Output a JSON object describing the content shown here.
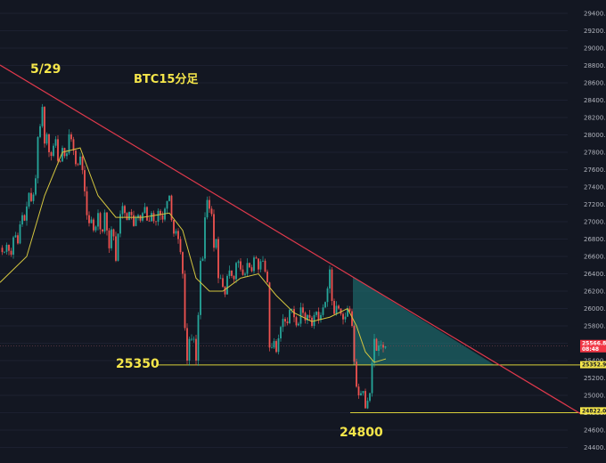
{
  "chart_data": {
    "type": "candlestick",
    "title": "BTC15分足",
    "date_label": "5/29",
    "ylim": [
      24400,
      29600
    ],
    "y_ticks": [
      24400,
      24600,
      24800,
      25000,
      25200,
      25400,
      25600,
      25800,
      26000,
      26200,
      26400,
      26600,
      26800,
      27000,
      27200,
      27400,
      27600,
      27800,
      28000,
      28200,
      28400,
      28600,
      28800,
      29000,
      29200,
      29400
    ],
    "y_tick_labels": [
      "24400.00",
      "24600.00",
      "24800.00",
      "25000.00",
      "25200.00",
      "25400.00",
      "25600.00",
      "25800.00",
      "26000.00",
      "26200.00",
      "26400.00",
      "26600.00",
      "26800.00",
      "27000.00",
      "27200.00",
      "27400.00",
      "27600.00",
      "27800.00",
      "28000.00",
      "28200.00",
      "28400.00",
      "28600.00",
      "28800.00",
      "29000.00",
      "29200.00",
      "29400.00"
    ],
    "price_tags": [
      {
        "label": "25566.87",
        "sub": "08:48",
        "value": 25566.87,
        "color": "#f23645"
      },
      {
        "label": "25352.96",
        "value": 25352.96,
        "color": "#f5e64a"
      },
      {
        "label": "24822.02",
        "value": 24822.02,
        "color": "#f5e64a"
      }
    ],
    "support_levels": [
      {
        "label": "25350",
        "value": 25350
      },
      {
        "label": "24800",
        "value": 24800
      }
    ],
    "path": [
      [
        0,
        26700
      ],
      [
        4,
        26620
      ],
      [
        8,
        26750
      ],
      [
        12,
        26580
      ],
      [
        16,
        26900
      ],
      [
        20,
        26750
      ],
      [
        24,
        27100
      ],
      [
        28,
        27000
      ],
      [
        32,
        27350
      ],
      [
        36,
        27200
      ],
      [
        40,
        27500
      ],
      [
        42,
        27900
      ],
      [
        44,
        28200
      ],
      [
        46,
        28000
      ],
      [
        48,
        28430
      ],
      [
        50,
        27900
      ],
      [
        52,
        28050
      ],
      [
        55,
        27800
      ],
      [
        58,
        27750
      ],
      [
        62,
        28000
      ],
      [
        66,
        27600
      ],
      [
        70,
        27850
      ],
      [
        74,
        27700
      ],
      [
        78,
        28050
      ],
      [
        82,
        27850
      ],
      [
        86,
        27600
      ],
      [
        90,
        27750
      ],
      [
        94,
        27500
      ],
      [
        96,
        27200
      ],
      [
        99,
        26950
      ],
      [
        102,
        27050
      ],
      [
        106,
        26850
      ],
      [
        110,
        27100
      ],
      [
        114,
        26800
      ],
      [
        118,
        27150
      ],
      [
        122,
        26650
      ],
      [
        126,
        27000
      ],
      [
        130,
        26550
      ],
      [
        134,
        27050
      ],
      [
        138,
        27200
      ],
      [
        142,
        27000
      ],
      [
        146,
        27150
      ],
      [
        150,
        26950
      ],
      [
        154,
        27100
      ],
      [
        158,
        27000
      ],
      [
        162,
        27200
      ],
      [
        166,
        26950
      ],
      [
        170,
        27100
      ],
      [
        174,
        26950
      ],
      [
        178,
        27150
      ],
      [
        182,
        27000
      ],
      [
        186,
        27200
      ],
      [
        190,
        27300
      ],
      [
        194,
        26850
      ],
      [
        198,
        26900
      ],
      [
        202,
        26700
      ],
      [
        206,
        26300
      ],
      [
        208,
        25600
      ],
      [
        210,
        25400
      ],
      [
        212,
        25700
      ],
      [
        214,
        25500
      ],
      [
        216,
        25800
      ],
      [
        218,
        25600
      ],
      [
        220,
        25400
      ],
      [
        222,
        25800
      ],
      [
        224,
        26300
      ],
      [
        226,
        26800
      ],
      [
        228,
        26500
      ],
      [
        230,
        27050
      ],
      [
        232,
        27200
      ],
      [
        234,
        27400
      ],
      [
        236,
        26900
      ],
      [
        238,
        27150
      ],
      [
        240,
        26700
      ],
      [
        242,
        26900
      ],
      [
        244,
        26500
      ],
      [
        246,
        26200
      ],
      [
        248,
        26400
      ],
      [
        250,
        26250
      ],
      [
        252,
        26100
      ],
      [
        254,
        26350
      ],
      [
        258,
        26450
      ],
      [
        262,
        26300
      ],
      [
        266,
        26600
      ],
      [
        270,
        26450
      ],
      [
        274,
        26350
      ],
      [
        278,
        26550
      ],
      [
        282,
        26400
      ],
      [
        286,
        26650
      ],
      [
        290,
        26450
      ],
      [
        294,
        26600
      ],
      [
        298,
        26400
      ],
      [
        300,
        26300
      ],
      [
        302,
        25600
      ],
      [
        304,
        25400
      ],
      [
        306,
        25700
      ],
      [
        310,
        25500
      ],
      [
        314,
        25750
      ],
      [
        318,
        25900
      ],
      [
        322,
        25800
      ],
      [
        326,
        26050
      ],
      [
        330,
        25900
      ],
      [
        334,
        25750
      ],
      [
        338,
        26050
      ],
      [
        342,
        25850
      ],
      [
        346,
        25950
      ],
      [
        350,
        25800
      ],
      [
        354,
        26000
      ],
      [
        358,
        25850
      ],
      [
        362,
        26000
      ],
      [
        366,
        26100
      ],
      [
        370,
        26450
      ],
      [
        372,
        26150
      ],
      [
        374,
        25900
      ],
      [
        378,
        26050
      ],
      [
        382,
        25950
      ],
      [
        386,
        25850
      ],
      [
        390,
        26000
      ],
      [
        394,
        25950
      ],
      [
        396,
        25650
      ],
      [
        398,
        25300
      ],
      [
        400,
        25100
      ],
      [
        402,
        24950
      ],
      [
        404,
        25150
      ],
      [
        406,
        24900
      ],
      [
        408,
        25100
      ],
      [
        410,
        24850
      ],
      [
        412,
        24950
      ],
      [
        414,
        24900
      ],
      [
        416,
        25150
      ],
      [
        418,
        25450
      ],
      [
        420,
        25650
      ],
      [
        422,
        25500
      ],
      [
        426,
        25600
      ],
      [
        430,
        25550
      ],
      [
        433,
        25567
      ]
    ],
    "ma": [
      [
        0,
        26300
      ],
      [
        30,
        26600
      ],
      [
        50,
        27300
      ],
      [
        70,
        27800
      ],
      [
        90,
        27850
      ],
      [
        110,
        27300
      ],
      [
        130,
        27050
      ],
      [
        160,
        27050
      ],
      [
        190,
        27100
      ],
      [
        205,
        26900
      ],
      [
        220,
        26350
      ],
      [
        235,
        26200
      ],
      [
        250,
        26200
      ],
      [
        270,
        26350
      ],
      [
        290,
        26400
      ],
      [
        310,
        26150
      ],
      [
        330,
        25950
      ],
      [
        350,
        25850
      ],
      [
        370,
        25900
      ],
      [
        390,
        26000
      ],
      [
        400,
        25800
      ],
      [
        410,
        25500
      ],
      [
        420,
        25380
      ],
      [
        433,
        25420
      ]
    ]
  },
  "colors": {
    "background": "#131722",
    "up": "#26a69a",
    "down": "#ef5350",
    "ma": "#d4c63f",
    "trendline": "#e0394c",
    "level": "#d9cf3a",
    "annotation": "#f5e64a",
    "triangle_fill": "#1f7e7d"
  }
}
